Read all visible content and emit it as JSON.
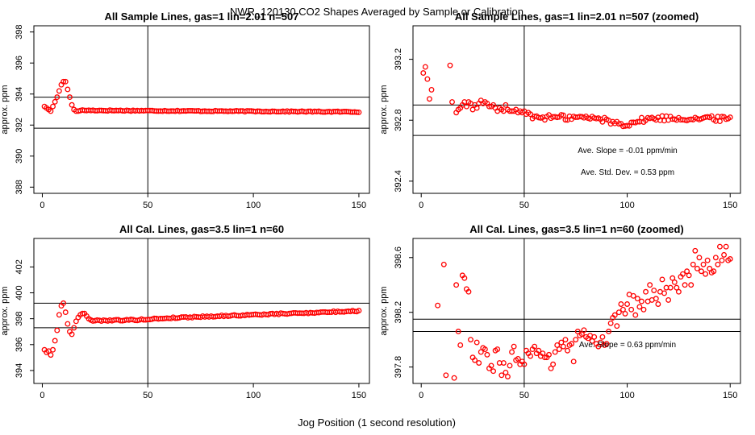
{
  "figure": {
    "title": "NWR_120130  CO2 Shapes Averaged by Sample or Calibration",
    "xlabel": "Jog Position (1 second resolution)",
    "marker_color": "#ff0000"
  },
  "chart_data": [
    {
      "type": "scatter",
      "title": "All Sample Lines, gas=1 lin=2.01 n=507",
      "xlabel": "",
      "ylabel": "approx. ppm",
      "xlim": [
        -4,
        155
      ],
      "ylim": [
        387.6,
        398.4
      ],
      "xticks": [
        0,
        50,
        100,
        150
      ],
      "yticks": [
        388,
        390,
        392,
        394,
        396,
        398
      ],
      "vline": 50,
      "hlines": [
        393.8,
        391.8
      ],
      "annotations": [],
      "series": [
        {
          "color": "#ff0000",
          "points": [
            [
              1,
              393.2
            ],
            [
              2,
              393.1
            ],
            [
              3,
              393.0
            ],
            [
              4,
              392.9
            ],
            [
              5,
              393.2
            ],
            [
              6,
              393.5
            ],
            [
              7,
              393.8
            ],
            [
              8,
              394.2
            ],
            [
              9,
              394.6
            ],
            [
              10,
              394.8
            ],
            [
              11,
              394.8
            ],
            [
              12,
              394.3
            ],
            [
              13,
              393.8
            ],
            [
              14,
              393.3
            ],
            [
              15,
              393.0
            ],
            [
              16,
              392.9
            ],
            [
              17,
              392.9
            ]
          ],
          "baseline": {
            "x_start": 18,
            "x_end": 150,
            "step": 1,
            "y_start": 392.95,
            "y_end": 392.85,
            "jitter": 0.03
          }
        }
      ]
    },
    {
      "type": "scatter",
      "title": "All Sample Lines, gas=1 lin=2.01 n=507 (zoomed)",
      "xlabel": "",
      "ylabel": "approx. ppm",
      "xlim": [
        -4,
        155
      ],
      "ylim": [
        392.32,
        393.42
      ],
      "xticks": [
        0,
        50,
        100,
        150
      ],
      "yticks": [
        392.4,
        392.8,
        393.2
      ],
      "vline": 50,
      "hlines": [
        392.9,
        392.7
      ],
      "annotations": [
        "Ave. Slope =  -0.01  ppm/min",
        "Ave. Std. Dev. =  0.53  ppm"
      ],
      "series": [
        {
          "color": "#ff0000",
          "points": [
            [
              1,
              393.11
            ],
            [
              2,
              393.15
            ],
            [
              3,
              393.07
            ],
            [
              4,
              392.94
            ],
            [
              5,
              393.0
            ],
            [
              14,
              393.16
            ],
            [
              15,
              392.92
            ],
            [
              17,
              392.85
            ],
            [
              18,
              392.87
            ],
            [
              19,
              392.88
            ],
            [
              20,
              392.9
            ],
            [
              21,
              392.92
            ],
            [
              22,
              392.89
            ],
            [
              23,
              392.92
            ],
            [
              24,
              392.91
            ],
            [
              25,
              392.87
            ],
            [
              26,
              392.9
            ],
            [
              27,
              392.88
            ],
            [
              28,
              392.91
            ],
            [
              29,
              392.93
            ],
            [
              30,
              392.91
            ],
            [
              31,
              392.92
            ],
            [
              32,
              392.91
            ],
            [
              33,
              392.89
            ],
            [
              34,
              392.89
            ],
            [
              35,
              392.9
            ],
            [
              36,
              392.88
            ],
            [
              37,
              392.86
            ],
            [
              38,
              392.88
            ],
            [
              39,
              392.87
            ],
            [
              40,
              392.86
            ],
            [
              41,
              392.9
            ],
            [
              42,
              392.87
            ],
            [
              43,
              392.86
            ],
            [
              44,
              392.86
            ],
            [
              45,
              392.86
            ],
            [
              46,
              392.87
            ],
            [
              47,
              392.85
            ],
            [
              48,
              392.86
            ],
            [
              49,
              392.85
            ],
            [
              50,
              392.86
            ],
            [
              51,
              392.84
            ],
            [
              52,
              392.85
            ],
            [
              53,
              392.84
            ]
          ],
          "baseline": {
            "x_start": 54,
            "x_end": 150,
            "step": 1,
            "y_start": 392.82,
            "y_end": 392.81,
            "jitter": 0.018,
            "dip": {
              "center": 98,
              "width": 9,
              "depth": 0.04
            }
          }
        }
      ]
    },
    {
      "type": "scatter",
      "title": "All Cal. Lines, gas=3.5 lin=1 n=60",
      "xlabel": "",
      "ylabel": "approx. ppm",
      "xlim": [
        -4,
        155
      ],
      "ylim": [
        393.0,
        404.2
      ],
      "xticks": [
        0,
        50,
        100,
        150
      ],
      "yticks": [
        394,
        396,
        398,
        400,
        402
      ],
      "vline": 50,
      "hlines": [
        399.2,
        397.3
      ],
      "annotations": [],
      "series": [
        {
          "color": "#ff0000",
          "points": [
            [
              1,
              395.6
            ],
            [
              2,
              395.4
            ],
            [
              3,
              395.5
            ],
            [
              4,
              395.2
            ],
            [
              5,
              395.6
            ],
            [
              6,
              396.3
            ],
            [
              7,
              397.1
            ],
            [
              8,
              398.3
            ],
            [
              9,
              399.0
            ],
            [
              10,
              399.2
            ],
            [
              11,
              398.5
            ],
            [
              12,
              397.6
            ],
            [
              13,
              397.0
            ],
            [
              14,
              396.8
            ],
            [
              15,
              397.3
            ],
            [
              16,
              397.8
            ],
            [
              17,
              398.1
            ],
            [
              18,
              398.3
            ],
            [
              19,
              398.4
            ],
            [
              20,
              398.4
            ],
            [
              21,
              398.2
            ],
            [
              22,
              398.0
            ],
            [
              23,
              397.9
            ]
          ],
          "baseline": {
            "x_start": 24,
            "x_end": 150,
            "step": 1,
            "y_start": 397.85,
            "y_end": 398.6,
            "jitter": 0.05,
            "dip": {
              "center": 45,
              "width": 12,
              "depth": 0.06
            }
          }
        }
      ]
    },
    {
      "type": "scatter",
      "title": "All Cal. Lines, gas=3.5 lin=1 n=60 (zoomed)",
      "xlabel": "",
      "ylabel": "approx. ppm",
      "xlim": [
        -4,
        155
      ],
      "ylim": [
        397.68,
        398.74
      ],
      "xticks": [
        0,
        50,
        100,
        150
      ],
      "yticks": [
        397.8,
        398.2,
        398.6
      ],
      "vline": 50,
      "hlines": [
        398.15,
        398.06
      ],
      "annotations": [
        "Ave. Slope =  0.63  ppm/min"
      ],
      "series": [
        {
          "color": "#ff0000",
          "points": [
            [
              8,
              398.25
            ],
            [
              11,
              398.55
            ],
            [
              12,
              397.74
            ],
            [
              16,
              397.72
            ],
            [
              17,
              398.4
            ],
            [
              18,
              398.06
            ],
            [
              19,
              397.96
            ],
            [
              20,
              398.47
            ],
            [
              21,
              398.45
            ],
            [
              22,
              398.37
            ],
            [
              23,
              398.35
            ],
            [
              24,
              398.0
            ],
            [
              25,
              397.87
            ],
            [
              26,
              397.85
            ],
            [
              27,
              397.98
            ],
            [
              28,
              397.83
            ],
            [
              29,
              397.91
            ],
            [
              30,
              397.94
            ],
            [
              31,
              397.93
            ],
            [
              32,
              397.89
            ],
            [
              33,
              397.79
            ],
            [
              34,
              397.81
            ],
            [
              35,
              397.77
            ],
            [
              36,
              397.92
            ],
            [
              37,
              397.93
            ],
            [
              38,
              397.83
            ],
            [
              39,
              397.74
            ],
            [
              40,
              397.83
            ],
            [
              41,
              397.76
            ],
            [
              42,
              397.73
            ],
            [
              43,
              397.81
            ],
            [
              44,
              397.91
            ],
            [
              45,
              397.95
            ],
            [
              46,
              397.85
            ],
            [
              47,
              397.86
            ],
            [
              48,
              397.82
            ],
            [
              49,
              397.84
            ],
            [
              50,
              397.82
            ],
            [
              51,
              397.92
            ],
            [
              52,
              397.9
            ],
            [
              53,
              397.88
            ],
            [
              54,
              397.93
            ],
            [
              55,
              397.95
            ],
            [
              56,
              397.9
            ],
            [
              57,
              397.92
            ],
            [
              58,
              397.88
            ],
            [
              59,
              397.9
            ],
            [
              60,
              397.87
            ],
            [
              61,
              397.87
            ],
            [
              62,
              397.89
            ],
            [
              63,
              397.79
            ],
            [
              64,
              397.82
            ],
            [
              65,
              397.91
            ],
            [
              66,
              397.96
            ],
            [
              67,
              397.93
            ],
            [
              68,
              397.98
            ],
            [
              69,
              397.95
            ],
            [
              70,
              398.0
            ],
            [
              71,
              397.92
            ],
            [
              72,
              397.96
            ],
            [
              73,
              397.97
            ],
            [
              74,
              397.84
            ],
            [
              75,
              398.0
            ],
            [
              76,
              398.06
            ],
            [
              77,
              398.03
            ],
            [
              78,
              398.04
            ],
            [
              79,
              398.07
            ],
            [
              80,
              398.02
            ],
            [
              81,
              398.01
            ],
            [
              82,
              398.03
            ],
            [
              83,
              397.99
            ],
            [
              84,
              398.02
            ],
            [
              85,
              397.97
            ],
            [
              86,
              397.95
            ],
            [
              87,
              397.98
            ],
            [
              88,
              398.02
            ],
            [
              89,
              397.96
            ],
            [
              90,
              397.97
            ],
            [
              91,
              398.06
            ],
            [
              92,
              398.12
            ],
            [
              93,
              398.16
            ],
            [
              94,
              398.18
            ],
            [
              95,
              398.1
            ],
            [
              96,
              398.2
            ],
            [
              97,
              398.26
            ],
            [
              98,
              398.22
            ],
            [
              99,
              398.19
            ],
            [
              100,
              398.26
            ],
            [
              101,
              398.33
            ],
            [
              102,
              398.22
            ],
            [
              103,
              398.32
            ],
            [
              104,
              398.18
            ],
            [
              105,
              398.3
            ],
            [
              106,
              398.24
            ],
            [
              107,
              398.28
            ],
            [
              108,
              398.22
            ],
            [
              109,
              398.35
            ],
            [
              110,
              398.28
            ],
            [
              111,
              398.4
            ],
            [
              112,
              398.29
            ],
            [
              113,
              398.36
            ],
            [
              114,
              398.3
            ],
            [
              115,
              398.26
            ],
            [
              116,
              398.35
            ],
            [
              117,
              398.44
            ],
            [
              118,
              398.34
            ],
            [
              119,
              398.38
            ],
            [
              120,
              398.29
            ],
            [
              121,
              398.38
            ],
            [
              122,
              398.45
            ],
            [
              123,
              398.42
            ],
            [
              124,
              398.38
            ],
            [
              125,
              398.35
            ],
            [
              126,
              398.46
            ],
            [
              127,
              398.48
            ],
            [
              128,
              398.4
            ],
            [
              129,
              398.5
            ],
            [
              130,
              398.47
            ],
            [
              131,
              398.4
            ],
            [
              132,
              398.55
            ],
            [
              133,
              398.65
            ],
            [
              134,
              398.52
            ],
            [
              135,
              398.6
            ],
            [
              136,
              398.5
            ],
            [
              137,
              398.55
            ],
            [
              138,
              398.48
            ],
            [
              139,
              398.58
            ],
            [
              140,
              398.52
            ],
            [
              141,
              398.49
            ],
            [
              142,
              398.5
            ],
            [
              143,
              398.6
            ],
            [
              144,
              398.55
            ],
            [
              145,
              398.68
            ],
            [
              146,
              398.58
            ],
            [
              147,
              398.62
            ],
            [
              148,
              398.68
            ],
            [
              149,
              398.58
            ],
            [
              150,
              398.59
            ]
          ]
        }
      ]
    }
  ]
}
